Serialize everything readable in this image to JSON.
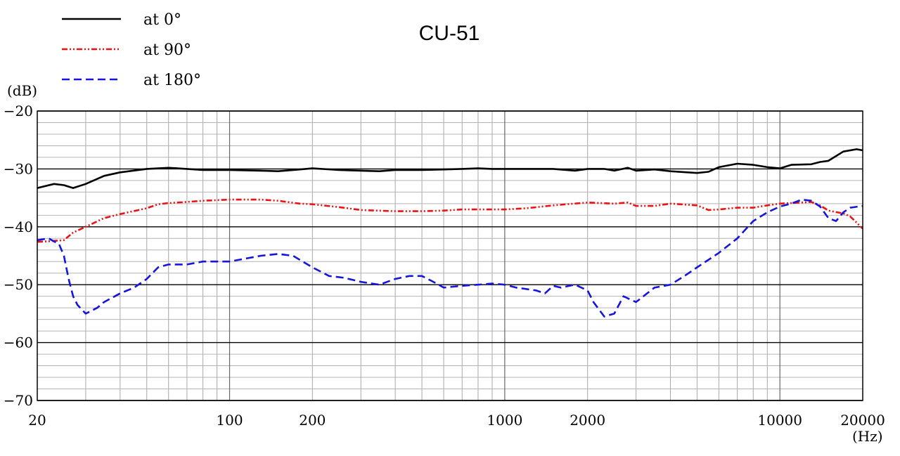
{
  "chart_data": {
    "type": "line",
    "title": "CU-51",
    "ylabel": "(dB)",
    "xlabel": "(Hz)",
    "x_scale": "log",
    "xlim": [
      20,
      20000
    ],
    "ylim": [
      -70,
      -20
    ],
    "x_ticks": [
      20,
      100,
      200,
      1000,
      2000,
      10000,
      20000
    ],
    "x_tick_labels": [
      "20",
      "100",
      "200",
      "1000",
      "2000",
      "10000",
      "20000"
    ],
    "y_ticks": [
      -20,
      -30,
      -40,
      -50,
      -60,
      -70
    ],
    "y_tick_labels": [
      "−20",
      "−30",
      "−40",
      "−50",
      "−60",
      "−70"
    ],
    "grid": true,
    "legend_position": "top-left",
    "series": [
      {
        "name": "at 0°",
        "color": "#000000",
        "dash": "solid",
        "points": [
          [
            20,
            -33.3
          ],
          [
            23,
            -32.6
          ],
          [
            25,
            -32.8
          ],
          [
            27,
            -33.3
          ],
          [
            30,
            -32.6
          ],
          [
            35,
            -31.2
          ],
          [
            40,
            -30.6
          ],
          [
            50,
            -30.0
          ],
          [
            60,
            -29.8
          ],
          [
            70,
            -30.0
          ],
          [
            80,
            -30.2
          ],
          [
            100,
            -30.2
          ],
          [
            130,
            -30.3
          ],
          [
            150,
            -30.4
          ],
          [
            180,
            -30.1
          ],
          [
            200,
            -29.9
          ],
          [
            250,
            -30.2
          ],
          [
            300,
            -30.3
          ],
          [
            350,
            -30.4
          ],
          [
            400,
            -30.2
          ],
          [
            500,
            -30.2
          ],
          [
            600,
            -30.1
          ],
          [
            700,
            -30.0
          ],
          [
            800,
            -29.9
          ],
          [
            900,
            -30.0
          ],
          [
            1000,
            -30.0
          ],
          [
            1300,
            -30.0
          ],
          [
            1500,
            -30.0
          ],
          [
            1800,
            -30.3
          ],
          [
            2000,
            -30.0
          ],
          [
            2300,
            -30.0
          ],
          [
            2500,
            -30.3
          ],
          [
            2800,
            -29.8
          ],
          [
            3000,
            -30.3
          ],
          [
            3500,
            -30.1
          ],
          [
            4000,
            -30.4
          ],
          [
            5000,
            -30.7
          ],
          [
            5500,
            -30.5
          ],
          [
            6000,
            -29.7
          ],
          [
            7000,
            -29.1
          ],
          [
            8000,
            -29.3
          ],
          [
            9000,
            -29.7
          ],
          [
            10000,
            -29.9
          ],
          [
            11000,
            -29.3
          ],
          [
            13000,
            -29.2
          ],
          [
            14000,
            -28.8
          ],
          [
            15000,
            -28.6
          ],
          [
            17000,
            -27.0
          ],
          [
            19000,
            -26.6
          ],
          [
            20000,
            -26.8
          ]
        ]
      },
      {
        "name": "at 90°",
        "color": "#ee1111",
        "dash": "dash-dot-dot",
        "points": [
          [
            20,
            -42.6
          ],
          [
            22,
            -42.5
          ],
          [
            25,
            -42.3
          ],
          [
            27,
            -41.0
          ],
          [
            30,
            -40.0
          ],
          [
            35,
            -38.5
          ],
          [
            40,
            -37.8
          ],
          [
            50,
            -36.8
          ],
          [
            55,
            -36.1
          ],
          [
            60,
            -35.9
          ],
          [
            70,
            -35.7
          ],
          [
            80,
            -35.5
          ],
          [
            100,
            -35.3
          ],
          [
            130,
            -35.3
          ],
          [
            150,
            -35.5
          ],
          [
            180,
            -36.0
          ],
          [
            200,
            -36.1
          ],
          [
            250,
            -36.6
          ],
          [
            300,
            -37.1
          ],
          [
            400,
            -37.3
          ],
          [
            500,
            -37.3
          ],
          [
            600,
            -37.2
          ],
          [
            700,
            -37.0
          ],
          [
            800,
            -37.0
          ],
          [
            1000,
            -37.0
          ],
          [
            1200,
            -36.8
          ],
          [
            1500,
            -36.3
          ],
          [
            2000,
            -35.8
          ],
          [
            2500,
            -36.0
          ],
          [
            2800,
            -35.8
          ],
          [
            3000,
            -36.4
          ],
          [
            3500,
            -36.4
          ],
          [
            4000,
            -36.0
          ],
          [
            5000,
            -36.3
          ],
          [
            5500,
            -37.1
          ],
          [
            6000,
            -37.0
          ],
          [
            7000,
            -36.7
          ],
          [
            8000,
            -36.7
          ],
          [
            9000,
            -36.3
          ],
          [
            10000,
            -36.0
          ],
          [
            11000,
            -35.9
          ],
          [
            12000,
            -35.8
          ],
          [
            13000,
            -35.7
          ],
          [
            14000,
            -36.3
          ],
          [
            15000,
            -37.2
          ],
          [
            17000,
            -37.7
          ],
          [
            18000,
            -38.2
          ],
          [
            20000,
            -40.3
          ]
        ]
      },
      {
        "name": "at 180°",
        "color": "#1515dd",
        "dash": "dashed",
        "points": [
          [
            20,
            -42.3
          ],
          [
            22,
            -42.0
          ],
          [
            24,
            -43.0
          ],
          [
            25,
            -45.0
          ],
          [
            26,
            -49.0
          ],
          [
            27,
            -52.0
          ],
          [
            28,
            -53.5
          ],
          [
            30,
            -55.0
          ],
          [
            33,
            -54.0
          ],
          [
            35,
            -53.0
          ],
          [
            40,
            -51.5
          ],
          [
            45,
            -50.5
          ],
          [
            50,
            -49.0
          ],
          [
            55,
            -47.0
          ],
          [
            60,
            -46.5
          ],
          [
            70,
            -46.5
          ],
          [
            80,
            -46.0
          ],
          [
            100,
            -46.0
          ],
          [
            130,
            -45.0
          ],
          [
            150,
            -44.7
          ],
          [
            170,
            -45.0
          ],
          [
            200,
            -47.0
          ],
          [
            230,
            -48.5
          ],
          [
            260,
            -48.8
          ],
          [
            300,
            -49.5
          ],
          [
            350,
            -50.0
          ],
          [
            400,
            -49.0
          ],
          [
            450,
            -48.5
          ],
          [
            500,
            -48.5
          ],
          [
            550,
            -49.5
          ],
          [
            600,
            -50.5
          ],
          [
            700,
            -50.2
          ],
          [
            800,
            -50.0
          ],
          [
            900,
            -49.8
          ],
          [
            1000,
            -50.0
          ],
          [
            1100,
            -50.5
          ],
          [
            1300,
            -51.0
          ],
          [
            1400,
            -51.5
          ],
          [
            1500,
            -50.2
          ],
          [
            1600,
            -50.5
          ],
          [
            1800,
            -50.0
          ],
          [
            2000,
            -51.0
          ],
          [
            2100,
            -53.0
          ],
          [
            2300,
            -55.5
          ],
          [
            2500,
            -55.0
          ],
          [
            2700,
            -52.0
          ],
          [
            3000,
            -53.0
          ],
          [
            3500,
            -50.5
          ],
          [
            4000,
            -50.0
          ],
          [
            4500,
            -48.5
          ],
          [
            5000,
            -47.0
          ],
          [
            6000,
            -44.5
          ],
          [
            7000,
            -42.0
          ],
          [
            8000,
            -39.0
          ],
          [
            9000,
            -37.5
          ],
          [
            10000,
            -36.5
          ],
          [
            11000,
            -36.0
          ],
          [
            12000,
            -35.3
          ],
          [
            13000,
            -35.5
          ],
          [
            14000,
            -36.5
          ],
          [
            15000,
            -38.5
          ],
          [
            16000,
            -39.0
          ],
          [
            17000,
            -37.5
          ],
          [
            18000,
            -36.7
          ],
          [
            20000,
            -36.4
          ]
        ]
      }
    ]
  }
}
